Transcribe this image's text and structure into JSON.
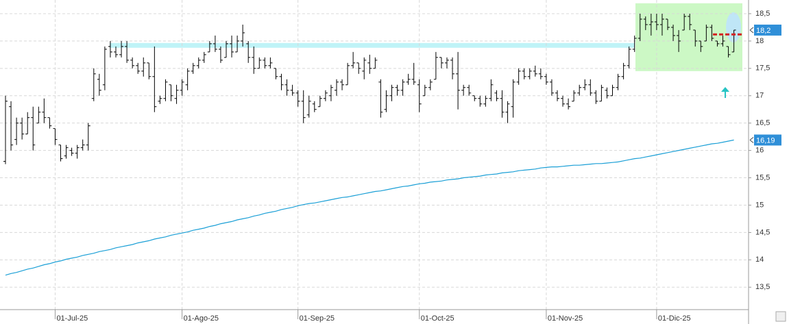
{
  "chart_data": {
    "type": "ohlc",
    "categories": [
      null,
      null,
      null,
      null,
      null,
      null,
      null,
      null,
      null,
      "01-Jul-25",
      null,
      null,
      null,
      null,
      null,
      null,
      null,
      null,
      null,
      null,
      null,
      null,
      null,
      null,
      null,
      null,
      null,
      null,
      null,
      null,
      null,
      null,
      "01-Ago-25",
      null,
      null,
      null,
      null,
      null,
      null,
      null,
      null,
      null,
      null,
      null,
      null,
      null,
      null,
      null,
      null,
      null,
      null,
      null,
      null,
      "01-Sep-25",
      null,
      null,
      null,
      null,
      null,
      null,
      null,
      null,
      null,
      null,
      null,
      null,
      null,
      null,
      null,
      null,
      null,
      null,
      null,
      null,
      null,
      "01-Oct-25",
      null,
      null,
      null,
      null,
      null,
      null,
      null,
      null,
      null,
      null,
      null,
      null,
      null,
      null,
      null,
      null,
      null,
      null,
      null,
      null,
      null,
      null,
      "01-Nov-25",
      null,
      null,
      null,
      null,
      null,
      null,
      null,
      null,
      null,
      null,
      null,
      null,
      null,
      null,
      null,
      null,
      null,
      null,
      null,
      "01-Dic-25",
      null,
      null,
      null,
      null,
      null,
      null,
      null,
      null,
      null,
      null,
      null,
      null,
      null,
      null
    ],
    "open": [
      15.8,
      16.8,
      16.2,
      16.5,
      16.3,
      16.6,
      16.5,
      16.7,
      16.6,
      16.4,
      16.1,
      15.9,
      16.0,
      15.95,
      16.05,
      16.1,
      16.95,
      17.3,
      17.2,
      17.9,
      17.8,
      17.75,
      17.9,
      17.65,
      17.55,
      17.45,
      17.6,
      17.35,
      16.9,
      16.95,
      17.2,
      16.95,
      17.1,
      17.2,
      17.45,
      17.55,
      17.65,
      17.8,
      17.95,
      17.85,
      17.7,
      17.95,
      17.8,
      18.0,
      17.95,
      17.7,
      17.5,
      17.65,
      17.55,
      17.5,
      17.35,
      17.2,
      17.1,
      17.05,
      16.9,
      16.65,
      16.85,
      16.8,
      16.95,
      17.0,
      17.1,
      17.25,
      17.2,
      17.55,
      17.6,
      17.45,
      17.6,
      17.5,
      17.25,
      16.75,
      17.0,
      17.15,
      17.1,
      17.25,
      17.3,
      17.2,
      17.0,
      17.15,
      17.3,
      17.7,
      17.6,
      17.65,
      17.4,
      17.1,
      17.15,
      17.0,
      16.95,
      16.85,
      16.95,
      17.05,
      16.95,
      16.7,
      16.8,
      17.25,
      17.45,
      17.35,
      17.45,
      17.4,
      17.35,
      17.25,
      17.05,
      16.95,
      16.85,
      16.9,
      17.05,
      17.15,
      17.2,
      17.05,
      16.9,
      17.1,
      17.0,
      17.15,
      17.35,
      17.55,
      17.85,
      18.05,
      18.4,
      18.3,
      18.35,
      18.3,
      18.4,
      18.25,
      18.1,
      18.2,
      18.45,
      18.2,
      18.0,
      18.0,
      18.25,
      18.0,
      17.95,
      17.9,
      17.8
    ],
    "high": [
      17.0,
      16.9,
      16.6,
      16.6,
      16.7,
      16.8,
      16.8,
      16.95,
      16.6,
      16.4,
      16.1,
      16.1,
      16.05,
      16.1,
      16.2,
      16.5,
      17.5,
      17.4,
      17.9,
      18.0,
      17.9,
      18.0,
      18.0,
      17.7,
      17.6,
      17.7,
      17.6,
      17.9,
      17.0,
      17.3,
      17.2,
      17.2,
      17.3,
      17.5,
      17.6,
      17.7,
      17.8,
      18.0,
      18.1,
      17.9,
      18.0,
      18.1,
      18.1,
      18.3,
      18.0,
      17.9,
      17.7,
      17.7,
      17.7,
      17.5,
      17.4,
      17.3,
      17.2,
      17.1,
      17.1,
      17.0,
      16.9,
      17.0,
      17.1,
      17.2,
      17.3,
      17.3,
      17.6,
      17.8,
      17.6,
      17.7,
      17.75,
      17.7,
      17.3,
      17.1,
      17.2,
      17.2,
      17.3,
      17.4,
      17.6,
      17.3,
      17.2,
      17.3,
      17.8,
      17.7,
      17.7,
      17.7,
      17.8,
      17.2,
      17.2,
      17.0,
      17.0,
      17.0,
      17.3,
      17.1,
      17.1,
      16.9,
      17.3,
      17.5,
      17.5,
      17.5,
      17.55,
      17.5,
      17.4,
      17.3,
      17.1,
      17.0,
      16.95,
      17.1,
      17.2,
      17.3,
      17.3,
      17.1,
      17.2,
      17.15,
      17.2,
      17.4,
      17.6,
      17.9,
      18.1,
      18.5,
      18.45,
      18.5,
      18.5,
      18.5,
      18.4,
      18.3,
      18.2,
      18.5,
      18.5,
      18.2,
      18.0,
      18.3,
      18.3,
      18.0,
      18.1,
      17.9,
      18.2
    ],
    "low": [
      15.75,
      16.0,
      16.1,
      16.2,
      16.3,
      16.0,
      16.5,
      16.5,
      16.4,
      16.1,
      15.8,
      15.85,
      15.9,
      15.85,
      16.0,
      16.0,
      16.9,
      17.0,
      17.1,
      17.7,
      17.7,
      17.7,
      17.6,
      17.5,
      17.4,
      17.35,
      17.3,
      16.7,
      16.85,
      16.9,
      16.9,
      16.85,
      17.0,
      17.1,
      17.4,
      17.5,
      17.6,
      17.8,
      17.8,
      17.6,
      17.7,
      17.7,
      17.8,
      17.9,
      17.6,
      17.4,
      17.5,
      17.5,
      17.5,
      17.3,
      17.1,
      17.0,
      17.0,
      16.8,
      16.5,
      16.6,
      16.7,
      16.8,
      16.9,
      16.9,
      17.0,
      17.1,
      17.2,
      17.5,
      17.4,
      17.3,
      17.4,
      17.5,
      16.6,
      16.7,
      16.9,
      17.0,
      17.0,
      17.2,
      17.2,
      16.7,
      17.0,
      17.1,
      17.3,
      17.5,
      17.5,
      17.3,
      16.75,
      17.0,
      17.0,
      16.9,
      16.8,
      16.8,
      16.9,
      16.9,
      16.6,
      16.5,
      16.6,
      17.2,
      17.3,
      17.3,
      17.35,
      17.3,
      17.2,
      17.0,
      16.9,
      16.8,
      16.75,
      16.9,
      17.0,
      17.1,
      17.0,
      16.85,
      16.9,
      16.95,
      17.0,
      17.1,
      17.3,
      17.5,
      17.8,
      18.0,
      18.2,
      18.1,
      18.2,
      18.1,
      18.2,
      18.0,
      17.8,
      18.2,
      18.2,
      17.9,
      17.8,
      18.0,
      18.0,
      17.9,
      17.9,
      17.7,
      17.8
    ],
    "close": [
      16.9,
      16.1,
      16.5,
      16.3,
      16.6,
      16.1,
      16.7,
      16.6,
      16.45,
      16.2,
      15.85,
      16.05,
      15.95,
      16.05,
      16.1,
      16.45,
      17.4,
      17.1,
      17.85,
      17.8,
      17.75,
      17.9,
      17.65,
      17.55,
      17.45,
      17.6,
      17.35,
      16.8,
      16.95,
      17.25,
      17.0,
      17.1,
      17.25,
      17.45,
      17.55,
      17.65,
      17.75,
      17.95,
      17.85,
      17.65,
      17.95,
      17.8,
      18.0,
      18.15,
      17.7,
      17.5,
      17.65,
      17.55,
      17.6,
      17.35,
      17.2,
      17.1,
      17.05,
      16.9,
      16.6,
      16.9,
      16.75,
      16.95,
      17.05,
      17.15,
      17.25,
      17.2,
      17.55,
      17.6,
      17.5,
      17.65,
      17.5,
      17.65,
      16.7,
      17.0,
      17.15,
      17.1,
      17.25,
      17.3,
      17.25,
      16.85,
      17.15,
      17.25,
      17.7,
      17.6,
      17.65,
      17.4,
      17.1,
      17.15,
      17.05,
      16.95,
      16.85,
      16.95,
      17.2,
      16.95,
      16.7,
      16.85,
      17.25,
      17.45,
      17.35,
      17.45,
      17.4,
      17.35,
      17.25,
      17.05,
      16.95,
      16.85,
      16.8,
      17.05,
      17.15,
      17.2,
      17.05,
      16.9,
      17.15,
      17.0,
      17.15,
      17.35,
      17.55,
      17.85,
      18.05,
      18.4,
      18.3,
      18.35,
      18.3,
      18.4,
      18.25,
      18.1,
      18.0,
      18.45,
      18.3,
      18.0,
      17.9,
      18.25,
      18.05,
      17.95,
      18.0,
      17.75,
      18.2
    ],
    "bar_color": "#000000",
    "ma": {
      "color": "#1a9fd6",
      "values": [
        13.72,
        13.75,
        13.77,
        13.8,
        13.83,
        13.85,
        13.88,
        13.91,
        13.93,
        13.96,
        13.98,
        14.01,
        14.03,
        14.05,
        14.08,
        14.1,
        14.12,
        14.15,
        14.17,
        14.19,
        14.22,
        14.24,
        14.26,
        14.28,
        14.31,
        14.33,
        14.35,
        14.38,
        14.4,
        14.42,
        14.45,
        14.47,
        14.49,
        14.51,
        14.54,
        14.56,
        14.58,
        14.61,
        14.63,
        14.66,
        14.68,
        14.7,
        14.73,
        14.75,
        14.77,
        14.8,
        14.82,
        14.85,
        14.87,
        14.89,
        14.92,
        14.94,
        14.96,
        14.99,
        15.01,
        15.03,
        15.04,
        15.06,
        15.08,
        15.1,
        15.12,
        15.14,
        15.15,
        15.17,
        15.19,
        15.21,
        15.23,
        15.25,
        15.26,
        15.28,
        15.3,
        15.32,
        15.34,
        15.35,
        15.37,
        15.39,
        15.4,
        15.42,
        15.43,
        15.44,
        15.46,
        15.47,
        15.48,
        15.5,
        15.51,
        15.52,
        15.53,
        15.55,
        15.56,
        15.57,
        15.59,
        15.6,
        15.61,
        15.63,
        15.64,
        15.65,
        15.66,
        15.68,
        15.69,
        15.7,
        15.7,
        15.71,
        15.72,
        15.73,
        15.73,
        15.74,
        15.75,
        15.76,
        15.76,
        15.77,
        15.78,
        15.79,
        15.81,
        15.83,
        15.85,
        15.86,
        15.88,
        15.9,
        15.92,
        15.94,
        15.96,
        15.98,
        16.0,
        16.02,
        16.04,
        16.06,
        16.08,
        16.1,
        16.12,
        16.13,
        16.15,
        16.17,
        16.19
      ]
    },
    "last_labels": {
      "close": "18,2",
      "ma": "16,19"
    },
    "resistance": 17.92,
    "range_box": [
      17.45,
      18.69
    ],
    "stop_level": 18.12,
    "ylim": [
      13.09,
      18.75
    ],
    "yticks": [
      {
        "value": 18.5,
        "label": "18,5"
      },
      18,
      {
        "value": 17.5,
        "label": "17,5"
      },
      17,
      {
        "value": 16.5,
        "label": "16,5"
      },
      16,
      {
        "value": 15.5,
        "label": "15,5"
      },
      15,
      {
        "value": 14.5,
        "label": "14,5"
      },
      14,
      {
        "value": 13.5,
        "label": "13,5"
      }
    ],
    "grid": true
  }
}
